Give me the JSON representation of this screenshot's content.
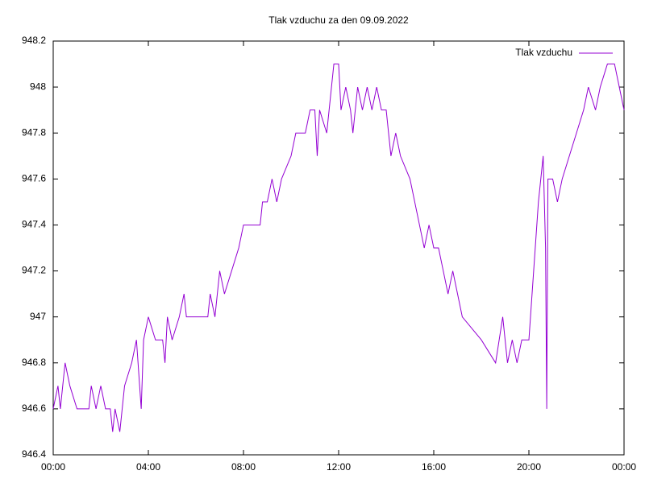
{
  "chart_data": {
    "type": "line",
    "title": "Tlak vzduchu za den 09.09.2022",
    "x": [
      0.0,
      0.2,
      0.3,
      0.4,
      0.5,
      0.7,
      1.0,
      1.5,
      1.6,
      1.8,
      2.0,
      2.2,
      2.4,
      2.5,
      2.6,
      2.8,
      3.0,
      3.3,
      3.5,
      3.7,
      3.8,
      4.0,
      4.3,
      4.6,
      4.7,
      4.8,
      5.0,
      5.3,
      5.5,
      5.6,
      6.0,
      6.5,
      6.6,
      6.8,
      7.0,
      7.2,
      7.5,
      7.8,
      8.0,
      8.3,
      8.7,
      8.8,
      9.0,
      9.2,
      9.4,
      9.6,
      10.0,
      10.2,
      10.6,
      10.8,
      11.0,
      11.1,
      11.2,
      11.5,
      11.7,
      11.8,
      12.0,
      12.1,
      12.3,
      12.5,
      12.6,
      12.8,
      13.0,
      13.2,
      13.4,
      13.6,
      13.8,
      14.0,
      14.2,
      14.4,
      14.6,
      15.0,
      15.4,
      15.6,
      15.8,
      16.0,
      16.2,
      16.4,
      16.6,
      16.8,
      17.0,
      17.2,
      18.0,
      18.6,
      18.9,
      19.1,
      19.3,
      19.5,
      19.7,
      20.0,
      20.2,
      20.4,
      20.6,
      20.7,
      20.75,
      20.8,
      21.0,
      21.2,
      21.4,
      21.7,
      22.0,
      22.3,
      22.5,
      22.8,
      23.0,
      23.3,
      23.6,
      23.8,
      24.0
    ],
    "series": [
      {
        "name": "Tlak vzduchu",
        "color": "#9400d3",
        "values": [
          946.6,
          946.7,
          946.6,
          946.7,
          946.8,
          946.7,
          946.6,
          946.6,
          946.7,
          946.6,
          946.7,
          946.6,
          946.6,
          946.5,
          946.6,
          946.5,
          946.7,
          946.8,
          946.9,
          946.6,
          946.9,
          947.0,
          946.9,
          946.9,
          946.8,
          947.0,
          946.9,
          947.0,
          947.1,
          947.0,
          947.0,
          947.0,
          947.1,
          947.0,
          947.2,
          947.1,
          947.2,
          947.3,
          947.4,
          947.4,
          947.4,
          947.5,
          947.5,
          947.6,
          947.5,
          947.6,
          947.7,
          947.8,
          947.8,
          947.9,
          947.9,
          947.7,
          947.9,
          947.8,
          948.0,
          948.1,
          948.1,
          947.9,
          948.0,
          947.9,
          947.8,
          948.0,
          947.9,
          948.0,
          947.9,
          948.0,
          947.9,
          947.9,
          947.7,
          947.8,
          947.7,
          947.6,
          947.4,
          947.3,
          947.4,
          947.3,
          947.3,
          947.2,
          947.1,
          947.2,
          947.1,
          947.0,
          946.9,
          946.8,
          947.0,
          946.8,
          946.9,
          946.8,
          946.9,
          946.9,
          947.2,
          947.5,
          947.7,
          947.3,
          946.6,
          947.6,
          947.6,
          947.5,
          947.6,
          947.7,
          947.8,
          947.9,
          948.0,
          947.9,
          948.0,
          948.1,
          948.1,
          948.0,
          947.9
        ]
      }
    ],
    "xlim": [
      0,
      24
    ],
    "xticks": [
      {
        "value": 0,
        "label": "00:00"
      },
      {
        "value": 4,
        "label": "04:00"
      },
      {
        "value": 8,
        "label": "08:00"
      },
      {
        "value": 12,
        "label": "12:00"
      },
      {
        "value": 16,
        "label": "16:00"
      },
      {
        "value": 20,
        "label": "20:00"
      },
      {
        "value": 24,
        "label": "00:00"
      }
    ],
    "ylim": [
      946.4,
      948.2
    ],
    "yticks": [
      946.4,
      946.6,
      946.8,
      947,
      947.2,
      947.4,
      947.6,
      947.8,
      948,
      948.2
    ],
    "legend": "top-right",
    "grid": false
  }
}
